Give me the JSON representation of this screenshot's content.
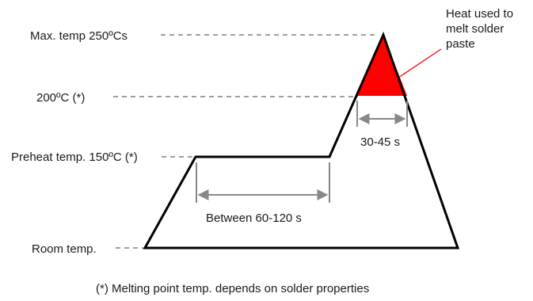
{
  "labels": {
    "max_temp": "Max. temp 250ºCs",
    "reflow_temp": "200ºC (*)",
    "preheat_temp": "Preheat temp. 150ºC (*)",
    "room_temp": "Room temp.",
    "melt_heat": [
      "Heat used to",
      "melt solder",
      "paste"
    ],
    "preheat_duration": "Between 60-120 s",
    "reflow_duration": "30-45 s",
    "footnote": "(*) Melting point temp. depends on solder properties"
  },
  "colors": {
    "outline": "#000000",
    "melt_fill": "#ff0000",
    "callout_line": "#ff0000",
    "guide_dash": "#666666",
    "dimension_arrow": "#888888"
  }
}
